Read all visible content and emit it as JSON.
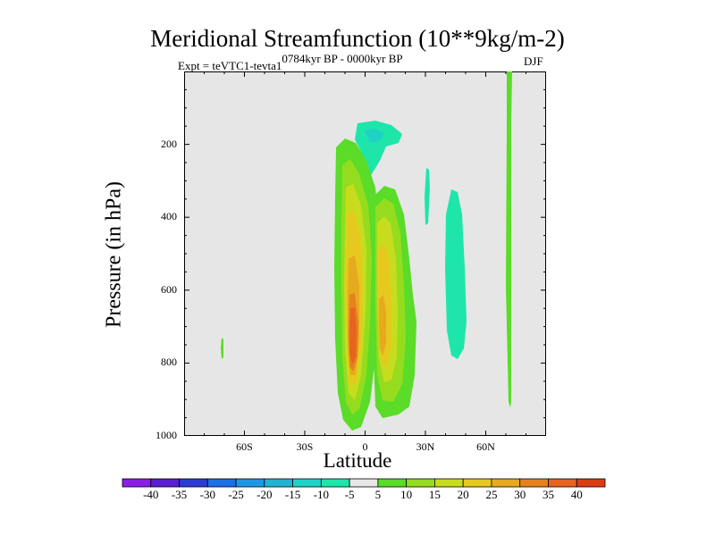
{
  "chart_data": {
    "type": "heatmap",
    "title": "Meridional Streamfunction (10**9kg/m-2)",
    "subtitle_left": "Expt = teVTC1-tevta1",
    "subtitle_left_sup": "0784kyr BP - 0000kyr BP",
    "subtitle_right": "DJF",
    "xlabel": "Latitude",
    "ylabel": "Pressure (in hPa)",
    "xlim": [
      -90,
      90
    ],
    "ylim": [
      1000,
      0
    ],
    "x_ticks": [
      {
        "value": -60,
        "label": "60S"
      },
      {
        "value": -30,
        "label": "30S"
      },
      {
        "value": 0,
        "label": "0"
      },
      {
        "value": 30,
        "label": "30N"
      },
      {
        "value": 60,
        "label": "60N"
      }
    ],
    "y_ticks": [
      {
        "value": 200,
        "label": "200"
      },
      {
        "value": 400,
        "label": "400"
      },
      {
        "value": 600,
        "label": "600"
      },
      {
        "value": 800,
        "label": "800"
      },
      {
        "value": 1000,
        "label": "1000"
      }
    ],
    "colorbar": {
      "levels": [
        -40,
        -35,
        -30,
        -25,
        -20,
        -15,
        -10,
        -5,
        5,
        10,
        15,
        20,
        25,
        30,
        35,
        40
      ],
      "labels": [
        "-40",
        "-35",
        "-30",
        "-25",
        "-20",
        "-15",
        "-10",
        "-5",
        "5",
        "10",
        "15",
        "20",
        "25",
        "30",
        "35",
        "40"
      ],
      "colors": [
        "#8a1ee6",
        "#5a1ed2",
        "#2a3cd2",
        "#1e6ee6",
        "#1e96e6",
        "#1eb4d2",
        "#1ed2c8",
        "#1ee6aa",
        "#e6e6e6",
        "#5adc28",
        "#96dc1e",
        "#c8dc1e",
        "#e6c81e",
        "#e6aa1e",
        "#e6821e",
        "#e6641e",
        "#dc3c14"
      ]
    },
    "features": [
      {
        "name": "tropical-cell-left",
        "lat_range": [
          -13,
          -3
        ],
        "p_range": [
          180,
          980
        ],
        "peak": 35
      },
      {
        "name": "tropical-cell-right",
        "lat_range": [
          3,
          15
        ],
        "p_range": [
          320,
          960
        ],
        "peak": 25
      },
      {
        "name": "upper-negative-cell",
        "lat_range": [
          -3,
          12
        ],
        "p_range": [
          120,
          220
        ],
        "peak": -5
      },
      {
        "name": "midlatitude-negative-cell",
        "lat_range": [
          40,
          48
        ],
        "p_range": [
          320,
          790
        ],
        "peak": -5
      },
      {
        "name": "high-latitude-positive-strip",
        "lat_range": [
          70,
          73
        ],
        "p_range": [
          0,
          920
        ],
        "peak": 5
      }
    ]
  }
}
